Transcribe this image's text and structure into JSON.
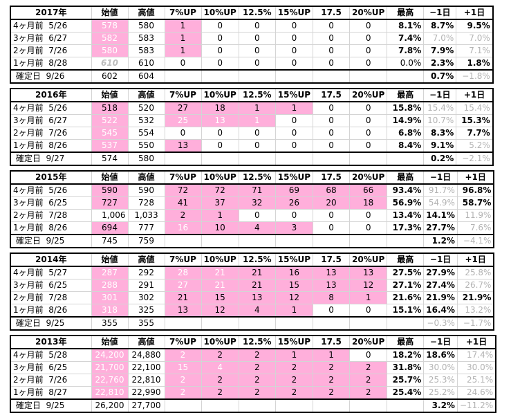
{
  "headers": [
    "始値",
    "高値",
    "7%UP",
    "10%UP",
    "12.5%",
    "15%UP",
    "17.5",
    "20%UP",
    "最高",
    "−1日",
    "+1日"
  ],
  "colors": {
    "pink": "#ffafdb",
    "gray_text": "#b3b3b3"
  },
  "blocks": [
    {
      "year": "2017年",
      "rows": [
        {
          "label": "4ヶ月前",
          "date": "5/26",
          "open": "578",
          "high": "580",
          "v": [
            "1",
            "0",
            "0",
            "0",
            "0",
            "0"
          ],
          "max": "8.1%",
          "m1": "8.7%",
          "p1": "9.5%"
        },
        {
          "label": "3ヶ月前",
          "date": "6/27",
          "open": "582",
          "high": "583",
          "v": [
            "1",
            "0",
            "0",
            "0",
            "0",
            "0"
          ],
          "max": "7.4%",
          "m1": "7.0%",
          "p1": "7.0%"
        },
        {
          "label": "2ヶ月前",
          "date": "7/26",
          "open": "580",
          "high": "583",
          "v": [
            "1",
            "0",
            "0",
            "0",
            "0",
            "0"
          ],
          "max": "7.8%",
          "m1": "7.9%",
          "p1": "7.1%"
        },
        {
          "label": "1ヶ月前",
          "date": "8/28",
          "open": "610",
          "high": "610",
          "v": [
            "0",
            "0",
            "0",
            "0",
            "0",
            "0"
          ],
          "max": "0.0%",
          "m1": "2.3%",
          "p1": "1.8%"
        }
      ],
      "confirm": {
        "label": "確定日",
        "date": "9/26",
        "open": "602",
        "high": "604",
        "m1": "0.7%",
        "p1": "−1.8%"
      }
    },
    {
      "year": "2016年",
      "rows": [
        {
          "label": "4ヶ月前",
          "date": "5/26",
          "open": "518",
          "high": "520",
          "v": [
            "27",
            "18",
            "1",
            "1",
            "0",
            "0"
          ],
          "max": "15.8%",
          "m1": "15.4%",
          "p1": "15.4%"
        },
        {
          "label": "3ヶ月前",
          "date": "6/27",
          "open": "522",
          "high": "532",
          "v": [
            "25",
            "13",
            "1",
            "0",
            "0",
            "0"
          ],
          "max": "14.9%",
          "m1": "10.7%",
          "p1": "15.3%"
        },
        {
          "label": "2ヶ月前",
          "date": "7/26",
          "open": "545",
          "high": "554",
          "v": [
            "0",
            "0",
            "0",
            "0",
            "0",
            "0"
          ],
          "max": "6.8%",
          "m1": "8.3%",
          "p1": "7.7%"
        },
        {
          "label": "1ヶ月前",
          "date": "8/26",
          "open": "537",
          "high": "550",
          "v": [
            "13",
            "0",
            "0",
            "0",
            "0",
            "0"
          ],
          "max": "8.4%",
          "m1": "9.1%",
          "p1": "5.2%"
        }
      ],
      "confirm": {
        "label": "確定日",
        "date": "9/27",
        "open": "574",
        "high": "580",
        "m1": "0.2%",
        "p1": "−2.1%"
      }
    },
    {
      "year": "2015年",
      "rows": [
        {
          "label": "4ヶ月前",
          "date": "5/26",
          "open": "590",
          "high": "590",
          "v": [
            "72",
            "72",
            "71",
            "69",
            "68",
            "66"
          ],
          "max": "93.4%",
          "m1": "91.7%",
          "p1": "96.8%"
        },
        {
          "label": "3ヶ月前",
          "date": "6/25",
          "open": "727",
          "high": "728",
          "v": [
            "41",
            "37",
            "32",
            "26",
            "20",
            "18"
          ],
          "max": "56.9%",
          "m1": "54.9%",
          "p1": "58.7%"
        },
        {
          "label": "2ヶ月前",
          "date": "7/28",
          "open": "1,006",
          "high": "1,033",
          "v": [
            "2",
            "1",
            "0",
            "0",
            "0",
            "0"
          ],
          "max": "13.4%",
          "m1": "14.1%",
          "p1": "11.9%"
        },
        {
          "label": "1ヶ月前",
          "date": "8/26",
          "open": "694",
          "high": "777",
          "v": [
            "16",
            "10",
            "4",
            "3",
            "0",
            "0"
          ],
          "max": "17.3%",
          "m1": "27.7%",
          "p1": "7.6%"
        }
      ],
      "confirm": {
        "label": "確定日",
        "date": "9/25",
        "open": "745",
        "high": "759",
        "m1": "1.2%",
        "p1": "−4.1%"
      }
    },
    {
      "year": "2014年",
      "rows": [
        {
          "label": "4ヶ月前",
          "date": "5/27",
          "open": "287",
          "high": "292",
          "v": [
            "28",
            "21",
            "21",
            "16",
            "13",
            "13"
          ],
          "max": "27.5%",
          "m1": "27.9%",
          "p1": "25.8%"
        },
        {
          "label": "3ヶ月前",
          "date": "6/25",
          "open": "288",
          "high": "291",
          "v": [
            "27",
            "21",
            "21",
            "15",
            "13",
            "12"
          ],
          "max": "27.1%",
          "m1": "27.4%",
          "p1": "26.7%"
        },
        {
          "label": "2ヶ月前",
          "date": "7/28",
          "open": "301",
          "high": "302",
          "v": [
            "21",
            "15",
            "13",
            "12",
            "8",
            "1"
          ],
          "max": "21.6%",
          "m1": "21.9%",
          "p1": "21.9%"
        },
        {
          "label": "1ヶ月前",
          "date": "8/26",
          "open": "318",
          "high": "325",
          "v": [
            "13",
            "12",
            "4",
            "1",
            "0",
            "0"
          ],
          "max": "15.1%",
          "m1": "16.4%",
          "p1": "13.2%"
        }
      ],
      "confirm": {
        "label": "確定日",
        "date": "9/25",
        "open": "355",
        "high": "355",
        "m1": "−0.3%",
        "p1": "−1.7%"
      }
    },
    {
      "year": "2013年",
      "rows": [
        {
          "label": "4ヶ月前",
          "date": "5/28",
          "open": "24,200",
          "high": "24,880",
          "v": [
            "2",
            "2",
            "2",
            "1",
            "1",
            "0"
          ],
          "max": "18.2%",
          "m1": "18.6%",
          "p1": "17.4%"
        },
        {
          "label": "3ヶ月前",
          "date": "6/25",
          "open": "21,700",
          "high": "22,100",
          "v": [
            "15",
            "4",
            "2",
            "2",
            "2",
            "2"
          ],
          "max": "31.8%",
          "m1": "30.0%",
          "p1": "30.0%"
        },
        {
          "label": "2ヶ月前",
          "date": "7/26",
          "open": "22,760",
          "high": "22,810",
          "v": [
            "2",
            "2",
            "2",
            "2",
            "2",
            "2"
          ],
          "max": "25.7%",
          "m1": "25.3%",
          "p1": "25.1%"
        },
        {
          "label": "1ヶ月前",
          "date": "8/27",
          "open": "22,810",
          "high": "22,990",
          "v": [
            "2",
            "2",
            "2",
            "2",
            "2",
            "2"
          ],
          "max": "25.4%",
          "m1": "25.2%",
          "p1": "24.6%"
        }
      ],
      "confirm": {
        "label": "確定日",
        "date": "9/25",
        "open": "26,200",
        "high": "27,700",
        "m1": "3.2%",
        "p1": "−11.2%"
      }
    }
  ]
}
